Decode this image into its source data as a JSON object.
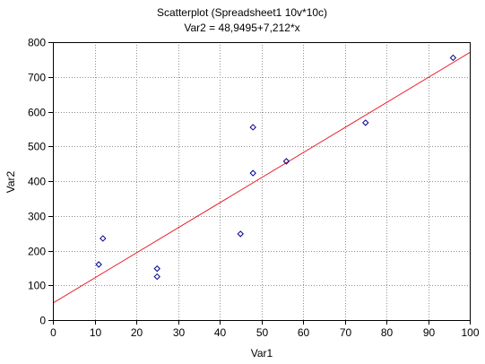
{
  "chart_data": {
    "type": "scatter",
    "title": "Scatterplot (Spreadsheet1 10v*10c)",
    "subtitle": "Var2 = 48,9495+7,212*x",
    "xlabel": "Var1",
    "ylabel": "Var2",
    "xlim": [
      0,
      100
    ],
    "ylim": [
      0,
      800
    ],
    "x_ticks": [
      0,
      10,
      20,
      30,
      40,
      50,
      60,
      70,
      80,
      90,
      100
    ],
    "y_ticks": [
      0,
      100,
      200,
      300,
      400,
      500,
      600,
      700,
      800
    ],
    "grid": true,
    "legend": "none",
    "points": [
      {
        "x": 11,
        "y": 160
      },
      {
        "x": 12,
        "y": 235
      },
      {
        "x": 25,
        "y": 148
      },
      {
        "x": 25,
        "y": 125
      },
      {
        "x": 45,
        "y": 248
      },
      {
        "x": 48,
        "y": 555
      },
      {
        "x": 48,
        "y": 423
      },
      {
        "x": 56,
        "y": 457
      },
      {
        "x": 75,
        "y": 568
      },
      {
        "x": 96,
        "y": 755
      }
    ],
    "fit_line": {
      "intercept": 48.9495,
      "slope": 7.212
    },
    "colors": {
      "points": "#00008b",
      "fit_line": "#e8202a",
      "grid": "#909090",
      "axes": "#000000",
      "background": "#ffffff"
    }
  }
}
